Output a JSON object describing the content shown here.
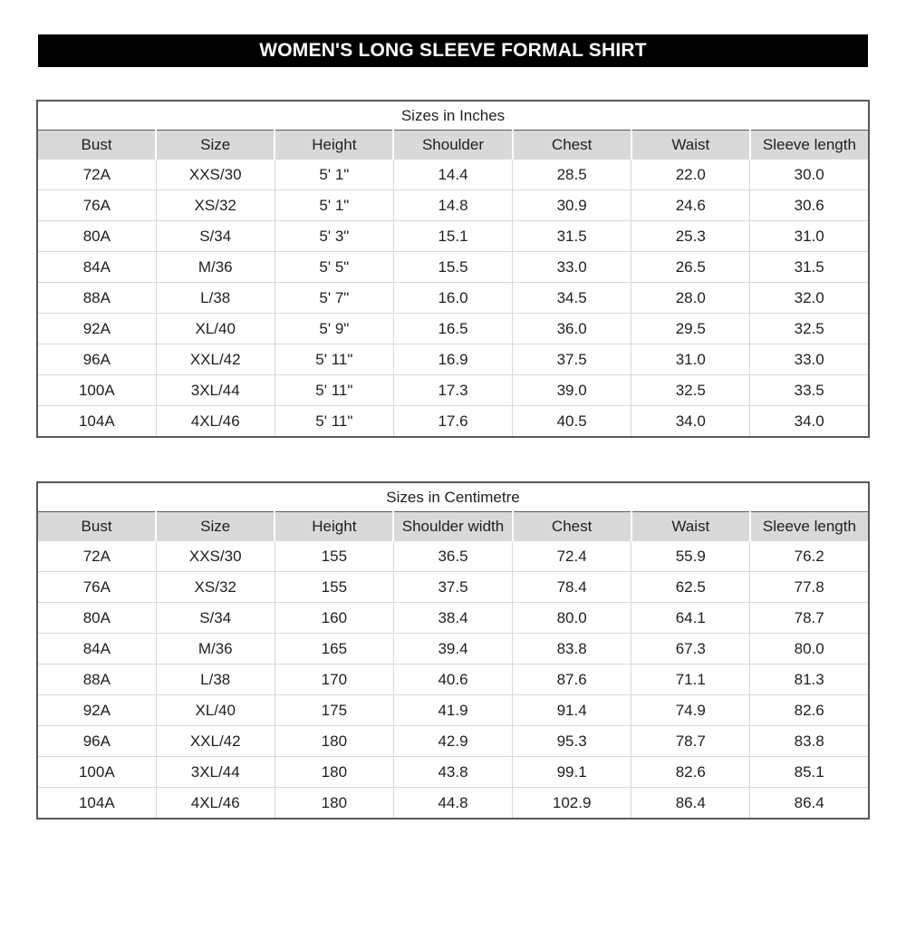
{
  "page": {
    "title": "WOMEN'S LONG SLEEVE FORMAL SHIRT"
  },
  "colors": {
    "banner_bg": "#000000",
    "banner_text": "#ffffff",
    "header_row_bg": "#d9d9d9",
    "table_outer_border": "#595959",
    "grid_line": "#d9d9d9",
    "body_text": "#1f1f1f"
  },
  "tables": [
    {
      "title": "Sizes in Inches",
      "columns": [
        "Bust",
        "Size",
        "Height",
        "Shoulder",
        "Chest",
        "Waist",
        "Sleeve length"
      ],
      "rows": [
        [
          "72A",
          "XXS/30",
          "5' 1\"",
          "14.4",
          "28.5",
          "22.0",
          "30.0"
        ],
        [
          "76A",
          "XS/32",
          "5' 1\"",
          "14.8",
          "30.9",
          "24.6",
          "30.6"
        ],
        [
          "80A",
          "S/34",
          "5' 3\"",
          "15.1",
          "31.5",
          "25.3",
          "31.0"
        ],
        [
          "84A",
          "M/36",
          "5' 5\"",
          "15.5",
          "33.0",
          "26.5",
          "31.5"
        ],
        [
          "88A",
          "L/38",
          "5' 7\"",
          "16.0",
          "34.5",
          "28.0",
          "32.0"
        ],
        [
          "92A",
          "XL/40",
          "5' 9\"",
          "16.5",
          "36.0",
          "29.5",
          "32.5"
        ],
        [
          "96A",
          "XXL/42",
          "5' 11\"",
          "16.9",
          "37.5",
          "31.0",
          "33.0"
        ],
        [
          "100A",
          "3XL/44",
          "5' 11\"",
          "17.3",
          "39.0",
          "32.5",
          "33.5"
        ],
        [
          "104A",
          "4XL/46",
          "5' 11\"",
          "17.6",
          "40.5",
          "34.0",
          "34.0"
        ]
      ]
    },
    {
      "title": "Sizes in Centimetre",
      "columns": [
        "Bust",
        "Size",
        "Height",
        "Shoulder width",
        "Chest",
        "Waist",
        "Sleeve length"
      ],
      "rows": [
        [
          "72A",
          "XXS/30",
          "155",
          "36.5",
          "72.4",
          "55.9",
          "76.2"
        ],
        [
          "76A",
          "XS/32",
          "155",
          "37.5",
          "78.4",
          "62.5",
          "77.8"
        ],
        [
          "80A",
          "S/34",
          "160",
          "38.4",
          "80.0",
          "64.1",
          "78.7"
        ],
        [
          "84A",
          "M/36",
          "165",
          "39.4",
          "83.8",
          "67.3",
          "80.0"
        ],
        [
          "88A",
          "L/38",
          "170",
          "40.6",
          "87.6",
          "71.1",
          "81.3"
        ],
        [
          "92A",
          "XL/40",
          "175",
          "41.9",
          "91.4",
          "74.9",
          "82.6"
        ],
        [
          "96A",
          "XXL/42",
          "180",
          "42.9",
          "95.3",
          "78.7",
          "83.8"
        ],
        [
          "100A",
          "3XL/44",
          "180",
          "43.8",
          "99.1",
          "82.6",
          "85.1"
        ],
        [
          "104A",
          "4XL/46",
          "180",
          "44.8",
          "102.9",
          "86.4",
          "86.4"
        ]
      ]
    }
  ]
}
